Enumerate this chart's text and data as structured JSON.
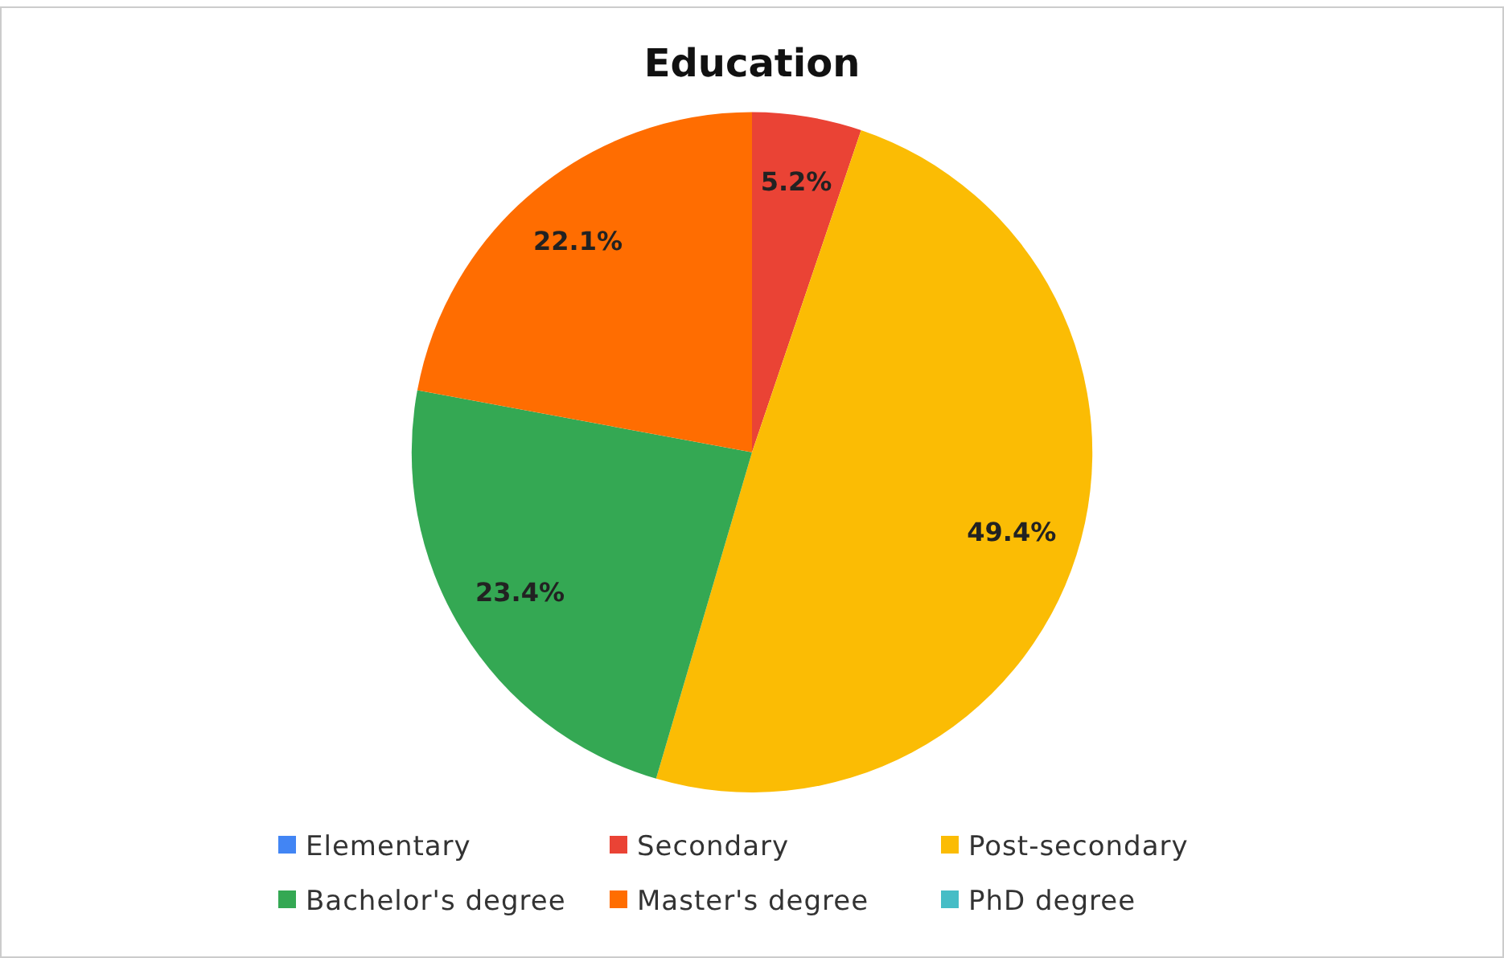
{
  "chart_data": {
    "type": "pie",
    "title": "Education",
    "categories": [
      "Elementary",
      "Secondary",
      "Post-secondary",
      "Bachelor's degree",
      "Master's degree",
      "PhD degree"
    ],
    "values": [
      0,
      5.2,
      49.4,
      23.4,
      22.1,
      0
    ],
    "colors": [
      "#4285f4",
      "#ea4335",
      "#fbbc04",
      "#34a853",
      "#ff6d01",
      "#46bdc6"
    ],
    "value_labels": [
      null,
      "5.2%",
      "49.4%",
      "23.4%",
      "22.1%",
      null
    ],
    "legend": "bottom"
  }
}
